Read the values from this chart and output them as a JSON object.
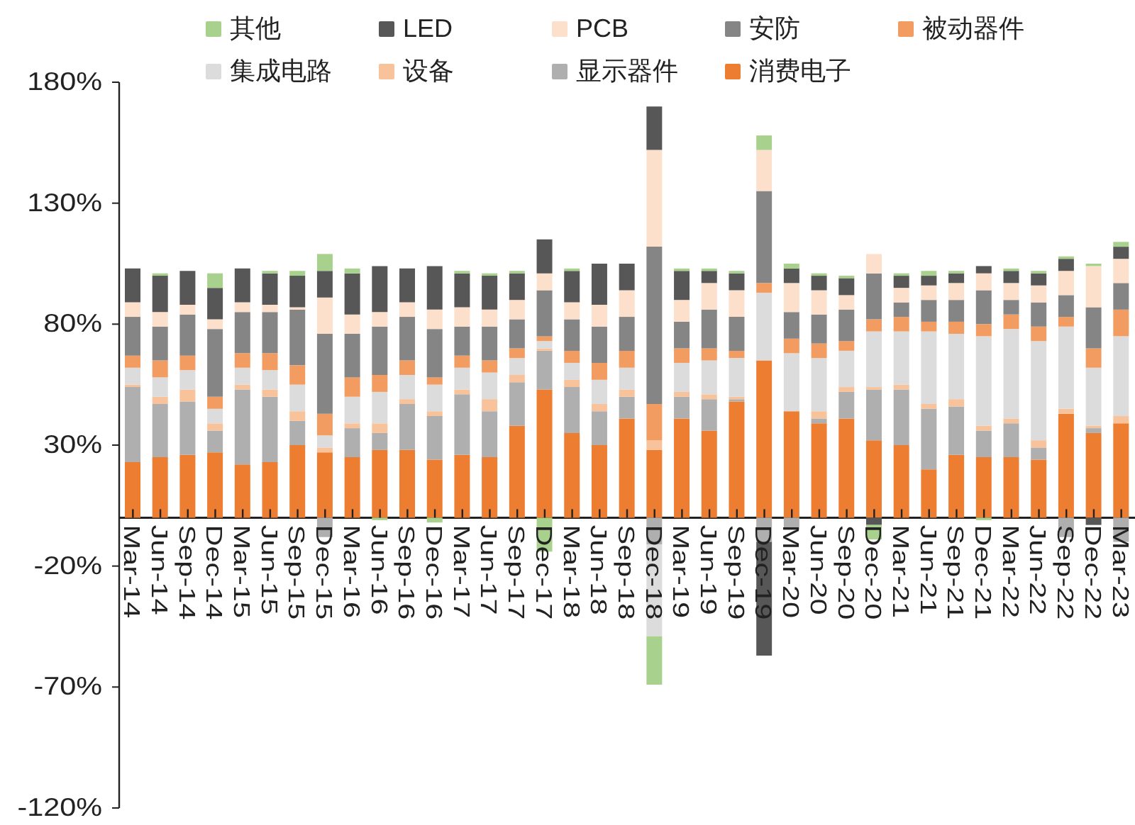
{
  "chart_data": {
    "type": "bar",
    "stacked": true,
    "categories": [
      "Mar-14",
      "Jun-14",
      "Sep-14",
      "Dec-14",
      "Mar-15",
      "Jun-15",
      "Sep-15",
      "Dec-15",
      "Mar-16",
      "Jun-16",
      "Sep-16",
      "Dec-16",
      "Mar-17",
      "Jun-17",
      "Sep-17",
      "Dec-17",
      "Mar-18",
      "Jun-18",
      "Sep-18",
      "Dec-18",
      "Mar-19",
      "Jun-19",
      "Sep-19",
      "Dec-19",
      "Mar-20",
      "Jun-20",
      "Sep-20",
      "Dec-20",
      "Mar-21",
      "Jun-21",
      "Sep-21",
      "Dec-21",
      "Mar-22",
      "Jun-22",
      "Sep-22",
      "Dec-22",
      "Mar-23"
    ],
    "series": [
      {
        "name": "消费电子",
        "color": "#ed7d31",
        "values": [
          23,
          25,
          26,
          27,
          22,
          23,
          30,
          27,
          25,
          28,
          28,
          24,
          26,
          25,
          38,
          53,
          35,
          30,
          41,
          28,
          41,
          36,
          48,
          65,
          44,
          39,
          41,
          32,
          30,
          20,
          26,
          25,
          25,
          24,
          43,
          35,
          39
        ]
      },
      {
        "name": "显示器件",
        "color": "#afafaf",
        "values": [
          31,
          22,
          22,
          9,
          31,
          27,
          10,
          -8,
          12,
          7,
          19,
          18,
          25,
          19,
          18,
          16,
          19,
          14,
          9,
          -11,
          9,
          13,
          1,
          -10,
          -5,
          2,
          11,
          21,
          23,
          25,
          20,
          11,
          14,
          5,
          -8,
          2,
          -10
        ]
      },
      {
        "name": "设备",
        "color": "#f8c39b",
        "values": [
          1,
          3,
          5,
          3,
          2,
          3,
          4,
          2,
          2,
          4,
          2,
          2,
          2,
          5,
          3,
          1,
          3,
          3,
          3,
          4,
          2,
          2,
          1,
          0,
          0,
          3,
          2,
          1,
          2,
          2,
          3,
          2,
          2,
          3,
          2,
          1,
          3
        ]
      },
      {
        "name": "集成电路",
        "color": "#dcdcdc",
        "values": [
          7,
          8,
          8,
          6,
          7,
          8,
          11,
          5,
          11,
          13,
          10,
          11,
          9,
          11,
          7,
          3,
          7,
          10,
          9,
          -38,
          12,
          14,
          16,
          28,
          24,
          22,
          15,
          23,
          22,
          30,
          27,
          37,
          37,
          41,
          34,
          24,
          33
        ]
      },
      {
        "name": "被动器件",
        "color": "#f29c61",
        "values": [
          5,
          7,
          6,
          5,
          6,
          7,
          8,
          9,
          8,
          7,
          6,
          3,
          5,
          5,
          4,
          2,
          5,
          7,
          7,
          15,
          6,
          5,
          3,
          4,
          6,
          6,
          4,
          5,
          6,
          4,
          5,
          5,
          6,
          6,
          4,
          8,
          11
        ]
      },
      {
        "name": "安防",
        "color": "#858585",
        "values": [
          16,
          14,
          17,
          28,
          17,
          17,
          23,
          33,
          18,
          20,
          18,
          20,
          12,
          14,
          12,
          19,
          13,
          15,
          14,
          65,
          11,
          16,
          14,
          38,
          11,
          12,
          13,
          19,
          6,
          9,
          9,
          14,
          6,
          10,
          9,
          17,
          11
        ]
      },
      {
        "name": "PCB",
        "color": "#fce0cb",
        "values": [
          6,
          6,
          4,
          4,
          4,
          3,
          1,
          15,
          8,
          6,
          6,
          8,
          8,
          7,
          8,
          7,
          7,
          9,
          11,
          40,
          9,
          11,
          11,
          17,
          12,
          10,
          6,
          8,
          6,
          6,
          7,
          7,
          7,
          7,
          10,
          17,
          10
        ]
      },
      {
        "name": "LED",
        "color": "#575757",
        "values": [
          14,
          15,
          14,
          13,
          14,
          13,
          13,
          11,
          17,
          19,
          14,
          18,
          14,
          14,
          11,
          14,
          13,
          17,
          11,
          18,
          12,
          5,
          7,
          -47,
          6,
          6,
          7,
          -3,
          5,
          4,
          4,
          3,
          5,
          5,
          5,
          -3,
          5
        ]
      },
      {
        "name": "其他",
        "color": "#a9d18e",
        "values": [
          0,
          1,
          0,
          6,
          0,
          1,
          2,
          7,
          2,
          -1,
          0,
          -2,
          1,
          1,
          1,
          -14,
          1,
          0,
          0,
          -20,
          1,
          1,
          1,
          6,
          2,
          1,
          1,
          -6,
          1,
          2,
          1,
          -1,
          1,
          1,
          1,
          1,
          2
        ]
      }
    ],
    "ylim": [
      -120,
      180
    ],
    "yticks": [
      {
        "value": -120,
        "label": "-120%"
      },
      {
        "value": -70,
        "label": "-70%"
      },
      {
        "value": -20,
        "label": "-20%"
      },
      {
        "value": 30,
        "label": "30%"
      },
      {
        "value": 80,
        "label": "80%"
      },
      {
        "value": 130,
        "label": "130%"
      },
      {
        "value": 180,
        "label": "180%"
      }
    ],
    "legend": "top"
  }
}
